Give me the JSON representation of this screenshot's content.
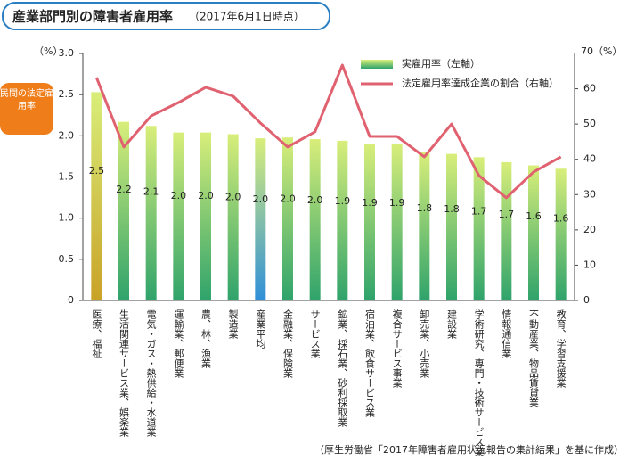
{
  "chart_data": {
    "type": "bar_line",
    "title": "産業部門別の障害者雇用率",
    "subtitle": "（2017年6月1日時点）",
    "y_unit": "（%）",
    "y2_unit": "70（%）",
    "annotation": "民間の法定雇用率",
    "source": "（厚生労働省「2017年障害者雇用状況報告の集計結果」を基に作成）",
    "categories": [
      "医療、福祉",
      "生活関連サービス業、娯楽業",
      "電気・ガス・熱供給・水道業",
      "運輸業、郵便業",
      "農、林、漁業",
      "製造業",
      "産業平均",
      "金融業、保険業",
      "サービス業",
      "鉱業、採石業、砂利採取業",
      "宿泊業、飲食サービス業",
      "複合サービス事業",
      "卸売業、小売業",
      "建設業",
      "学術研究、専門・技術サービス業",
      "情報通信業",
      "不動産業、物品賃貸業",
      "教育、学習支援業"
    ],
    "series": [
      {
        "name": "実雇用率（左軸）",
        "kind": "bar",
        "color": "#2fa36b",
        "colors": [
          "#c9a227",
          "#2fa36b",
          "#2fa36b",
          "#2fa36b",
          "#2fa36b",
          "#2fa36b",
          "#2f8fd8",
          "#2fa36b",
          "#2fa36b",
          "#2fa36b",
          "#2fa36b",
          "#2fa36b",
          "#2fa36b",
          "#2fa36b",
          "#2fa36b",
          "#2fa36b",
          "#2fa36b",
          "#2fa36b"
        ],
        "values": [
          2.53,
          2.17,
          2.12,
          2.04,
          2.04,
          2.02,
          1.97,
          1.98,
          1.96,
          1.94,
          1.9,
          1.9,
          1.8,
          1.78,
          1.74,
          1.68,
          1.64,
          1.6
        ],
        "value_labels": [
          "2.5",
          "2.2",
          "2.1",
          "2.0",
          "2.0",
          "2.0",
          "2.0",
          "2.0",
          "2.0",
          "1.9",
          "1.9",
          "1.9",
          "1.8",
          "1.8",
          "1.7",
          "1.7",
          "1.6",
          "1.6"
        ]
      },
      {
        "name": "法定雇用率達成企業の割合（右軸）",
        "kind": "line",
        "axis": "y2",
        "color": "#e06270",
        "values": [
          63.2,
          43.5,
          52.3,
          56.1,
          60.4,
          57.9,
          50.3,
          43.5,
          47.8,
          66.7,
          46.5,
          46.5,
          40.7,
          50.0,
          35.4,
          29.1,
          36.4,
          40.7
        ]
      }
    ],
    "ylim": [
      0,
      3
    ],
    "yticks": [
      0,
      0.5,
      {
        "value": 1,
        "label": "1.0"
      },
      1.5,
      {
        "value": 2,
        "label": "2.0"
      },
      2.5,
      {
        "value": 3,
        "label": "3.0"
      }
    ],
    "y2lim": [
      0,
      70
    ],
    "y2ticks": [
      0,
      10,
      20,
      30,
      40,
      50,
      60
    ],
    "grid": false,
    "legend": "upper right"
  }
}
